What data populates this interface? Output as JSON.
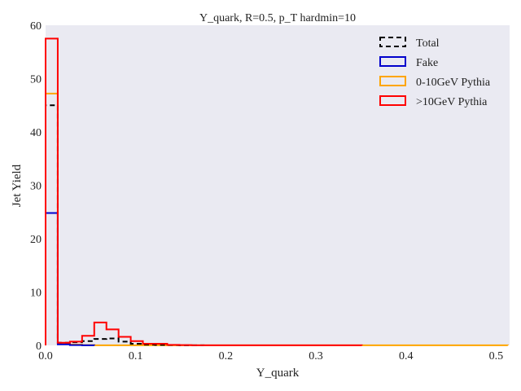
{
  "chart_data": {
    "type": "step-histogram",
    "title": "Y_quark, R=0.5, p_T hardmin=10",
    "xlabel": "Y_quark",
    "ylabel": "Jet Yield",
    "xlim": [
      0,
      0.515
    ],
    "ylim": [
      0,
      60
    ],
    "xticks": [
      0,
      0.1,
      0.2,
      0.3,
      0.4,
      0.5
    ],
    "xtick_labels": [
      "0.0",
      "0.1",
      "0.2",
      "0.3",
      "0.4",
      "0.5"
    ],
    "yticks": [
      0,
      10,
      20,
      30,
      40,
      50,
      60
    ],
    "ytick_labels": [
      "0",
      "10",
      "20",
      "30",
      "40",
      "50",
      "60"
    ],
    "grid": false,
    "legend_position": "top-right",
    "bin_width": 0.0135,
    "series": [
      {
        "name": "Total",
        "color": "#000000",
        "style": "dashed",
        "bin_start": 0.0,
        "values": [
          45,
          0.5,
          0.6,
          0.8,
          1.2,
          1.3,
          0.7,
          0.3,
          0.15,
          0.1,
          0.05,
          0.02,
          0.01
        ]
      },
      {
        "name": "Fake",
        "color": "#0000cc",
        "style": "solid",
        "bin_start": 0.0,
        "values": [
          24.8,
          0.2,
          0.05,
          0.02
        ]
      },
      {
        "name": "0-10GeV Pythia",
        "color": "#ffa500",
        "style": "solid",
        "bin_start": 0.0,
        "values": [
          47.2,
          0.4,
          0.15,
          0.05,
          0.02,
          0.01,
          0.01,
          0.01,
          0.01,
          0.01,
          0.01,
          0.01,
          0.01,
          0.01,
          0.01,
          0.01,
          0.01,
          0.01,
          0.01,
          0.01,
          0.01,
          0.01,
          0.01,
          0.01,
          0.01,
          0.01,
          0.01,
          0.01,
          0.01,
          0.01,
          0.01,
          0.01,
          0.01,
          0.01,
          0.01,
          0.01,
          0.01,
          0.01
        ]
      },
      {
        "name": ">10GeV Pythia",
        "color": "#ff0000",
        "style": "solid",
        "bin_start": 0.0,
        "values": [
          57.5,
          0.5,
          0.7,
          1.8,
          4.3,
          3.0,
          1.6,
          0.8,
          0.3,
          0.3,
          0.1,
          0.05,
          0.02,
          0.02,
          0.01,
          0.01,
          0.01,
          0.01,
          0.01,
          0.01,
          0.01,
          0.01,
          0.01,
          0.01,
          0.01,
          0.01
        ]
      }
    ]
  }
}
